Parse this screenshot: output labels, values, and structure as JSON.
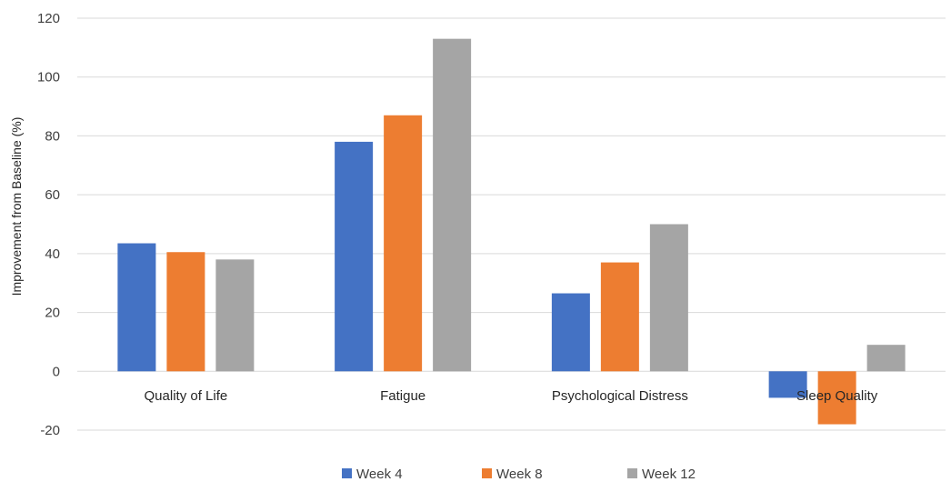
{
  "chart_data": {
    "type": "bar",
    "categories": [
      "Quality of Life",
      "Fatigue",
      "Psychological Distress",
      "Sleep Quality"
    ],
    "series": [
      {
        "name": "Week 4",
        "color": "#4472c4",
        "values": [
          43.5,
          78,
          26.5,
          -9
        ]
      },
      {
        "name": "Week 8",
        "color": "#ed7d31",
        "values": [
          40.5,
          87,
          37,
          -18
        ]
      },
      {
        "name": "Week 12",
        "color": "#a5a5a5",
        "values": [
          38,
          113,
          50,
          9
        ]
      }
    ],
    "ylabel": "Improvement from Baseline (%)",
    "ylim": [
      -20,
      120
    ],
    "yticks": [
      -20,
      0,
      20,
      40,
      60,
      80,
      100,
      120
    ],
    "grid": true,
    "legend_position": "bottom"
  }
}
